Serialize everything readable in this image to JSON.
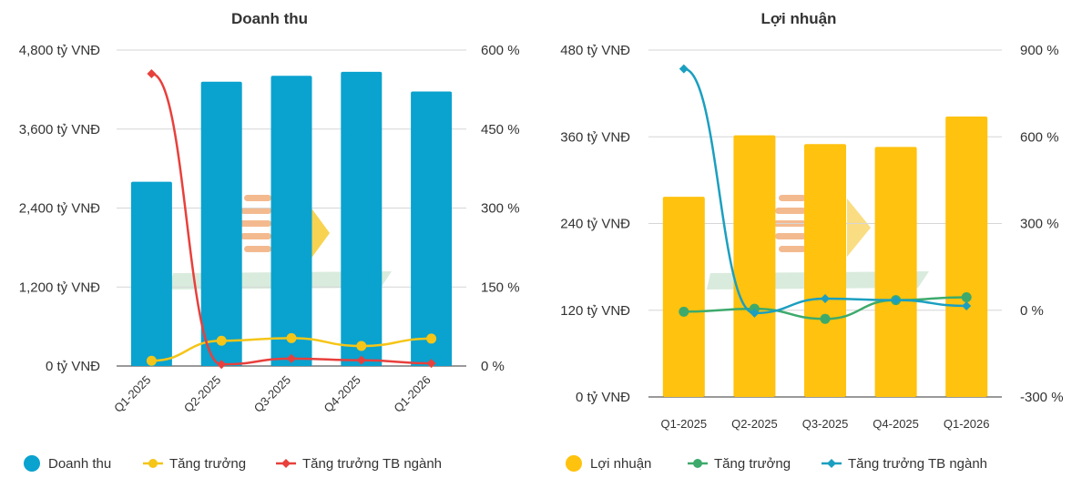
{
  "chart_data": [
    {
      "type": "bar",
      "title": "Doanh thu",
      "categories": [
        "Q1-2025",
        "Q2-2025",
        "Q3-2025",
        "Q4-2025",
        "Q1-2026"
      ],
      "y_left": {
        "ticks": [
          "0 tỷ VNĐ",
          "1,200 tỷ VNĐ",
          "2,400 tỷ VNĐ",
          "3,600 tỷ VNĐ",
          "4,800 tỷ VNĐ"
        ],
        "range": [
          0,
          4800
        ]
      },
      "y_right": {
        "ticks": [
          "0 %",
          "150 %",
          "300 %",
          "450 %",
          "600 %"
        ],
        "range": [
          0,
          600
        ]
      },
      "x_labels_rotated": true,
      "grid": true,
      "legend_position": "bottom",
      "bar_series": {
        "name": "Doanh thu",
        "color": "#0aa2cf",
        "values": [
          2800,
          4320,
          4410,
          4470,
          4170
        ]
      },
      "line_series": [
        {
          "name": "Tăng trưởng",
          "color": "#f5c518",
          "marker": "circle",
          "values": [
            10,
            48,
            53,
            38,
            52
          ]
        },
        {
          "name": "Tăng trưởng TB ngành",
          "color": "#e8403c",
          "marker": "diamond",
          "values": [
            555,
            3,
            14,
            11,
            5
          ]
        }
      ]
    },
    {
      "type": "bar",
      "title": "Lợi nhuận",
      "categories": [
        "Q1-2025",
        "Q2-2025",
        "Q3-2025",
        "Q4-2025",
        "Q1-2026"
      ],
      "y_left": {
        "ticks": [
          "0 tỷ VNĐ",
          "120 tỷ VNĐ",
          "240 tỷ VNĐ",
          "360 tỷ VNĐ",
          "480 tỷ VNĐ"
        ],
        "range": [
          0,
          480
        ]
      },
      "y_right": {
        "ticks": [
          "-300 %",
          "0 %",
          "300 %",
          "600 %",
          "900 %"
        ],
        "range": [
          -300,
          900
        ]
      },
      "x_labels_rotated": false,
      "grid": true,
      "legend_position": "bottom",
      "bar_series": {
        "name": "Lợi nhuận",
        "color": "#ffc20e",
        "values": [
          277,
          362,
          350,
          346,
          388
        ]
      },
      "line_series": [
        {
          "name": "Tăng trưởng",
          "color": "#3daa6c",
          "marker": "circle",
          "values": [
            -5,
            5,
            -30,
            35,
            45
          ]
        },
        {
          "name": "Tăng trưởng TB ngành",
          "color": "#1b9fc0",
          "marker": "diamond",
          "values": [
            835,
            -10,
            40,
            35,
            15
          ]
        }
      ]
    }
  ]
}
